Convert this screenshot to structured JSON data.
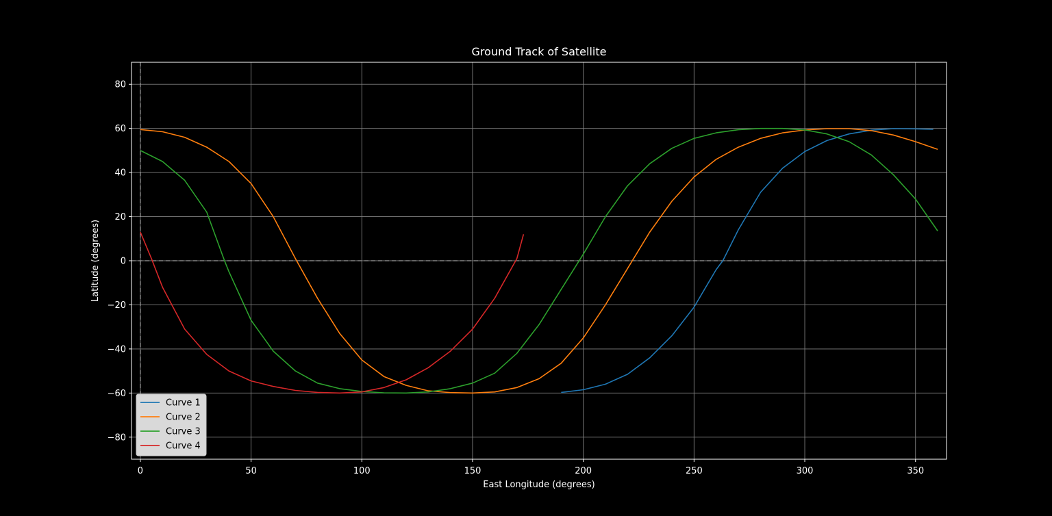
{
  "chart_data": {
    "type": "line",
    "title": "Ground Track of Satellite",
    "xlabel": "East Longitude (degrees)",
    "ylabel": "Latitude (degrees)",
    "xlim": [
      -4,
      364
    ],
    "ylim": [
      -90,
      90
    ],
    "xticks": [
      0,
      50,
      100,
      150,
      200,
      250,
      300,
      350
    ],
    "yticks": [
      -80,
      -60,
      -40,
      -20,
      0,
      20,
      40,
      60,
      80
    ],
    "xtick_labels": [
      "0",
      "50",
      "100",
      "150",
      "200",
      "250",
      "300",
      "350"
    ],
    "ytick_labels": [
      "−80",
      "−60",
      "−40",
      "−20",
      "0",
      "20",
      "40",
      "60",
      "80"
    ],
    "grid": true,
    "reference_lines": {
      "x": 0,
      "y": 0,
      "style": "dashed"
    },
    "legend_position": "lower-left",
    "series": [
      {
        "name": "Curve 1",
        "color": "#1f77b4",
        "points": [
          [
            190,
            -59.7
          ],
          [
            200,
            -58.5
          ],
          [
            210,
            -56
          ],
          [
            220,
            -51.5
          ],
          [
            230,
            -44
          ],
          [
            240,
            -34
          ],
          [
            250,
            -21
          ],
          [
            255,
            -12.5
          ],
          [
            260,
            -4
          ],
          [
            263,
            0
          ],
          [
            270,
            14
          ],
          [
            280,
            31
          ],
          [
            290,
            42
          ],
          [
            300,
            49.5
          ],
          [
            310,
            54.5
          ],
          [
            320,
            57.5
          ],
          [
            330,
            59.2
          ],
          [
            340,
            59.9
          ],
          [
            350,
            59.8
          ],
          [
            358,
            59.6
          ]
        ]
      },
      {
        "name": "Curve 2",
        "color": "#ff7f0e",
        "points": [
          [
            0,
            59.5
          ],
          [
            10,
            58.5
          ],
          [
            20,
            56
          ],
          [
            30,
            51.5
          ],
          [
            40,
            45
          ],
          [
            50,
            35
          ],
          [
            60,
            20
          ],
          [
            70,
            1
          ],
          [
            80,
            -17
          ],
          [
            90,
            -33
          ],
          [
            100,
            -45
          ],
          [
            110,
            -52.5
          ],
          [
            120,
            -56.5
          ],
          [
            130,
            -59
          ],
          [
            140,
            -59.8
          ],
          [
            150,
            -60
          ],
          [
            160,
            -59.5
          ],
          [
            170,
            -57.5
          ],
          [
            180,
            -53.5
          ],
          [
            190,
            -46.5
          ],
          [
            200,
            -35
          ],
          [
            210,
            -20
          ],
          [
            220,
            -3.5
          ],
          [
            230,
            13
          ],
          [
            240,
            27
          ],
          [
            250,
            38
          ],
          [
            260,
            46
          ],
          [
            270,
            51.5
          ],
          [
            280,
            55.5
          ],
          [
            290,
            58
          ],
          [
            300,
            59.3
          ],
          [
            310,
            59.9
          ],
          [
            320,
            59.9
          ],
          [
            330,
            59
          ],
          [
            340,
            57
          ],
          [
            350,
            54
          ],
          [
            360,
            50.5
          ]
        ]
      },
      {
        "name": "Curve 3",
        "color": "#2ca02c",
        "points": [
          [
            0,
            50
          ],
          [
            10,
            45
          ],
          [
            20,
            36.5
          ],
          [
            30,
            22
          ],
          [
            38,
            0
          ],
          [
            40,
            -5
          ],
          [
            50,
            -27
          ],
          [
            60,
            -41
          ],
          [
            70,
            -50
          ],
          [
            80,
            -55.5
          ],
          [
            90,
            -58
          ],
          [
            100,
            -59.3
          ],
          [
            110,
            -59.9
          ],
          [
            120,
            -60
          ],
          [
            130,
            -59.5
          ],
          [
            140,
            -58
          ],
          [
            150,
            -55.5
          ],
          [
            160,
            -51
          ],
          [
            170,
            -42
          ],
          [
            180,
            -29
          ],
          [
            190,
            -13
          ],
          [
            200,
            3
          ],
          [
            210,
            20
          ],
          [
            220,
            34
          ],
          [
            230,
            44
          ],
          [
            240,
            51
          ],
          [
            250,
            55.5
          ],
          [
            260,
            58
          ],
          [
            270,
            59.4
          ],
          [
            280,
            60
          ],
          [
            290,
            60
          ],
          [
            300,
            59.3
          ],
          [
            310,
            57.5
          ],
          [
            320,
            54
          ],
          [
            330,
            48
          ],
          [
            340,
            39
          ],
          [
            350,
            28
          ],
          [
            360,
            13.5
          ]
        ]
      },
      {
        "name": "Curve 4",
        "color": "#d62728",
        "points": [
          [
            0,
            13
          ],
          [
            5,
            1
          ],
          [
            10,
            -12
          ],
          [
            20,
            -31
          ],
          [
            30,
            -42.5
          ],
          [
            40,
            -50
          ],
          [
            50,
            -54.5
          ],
          [
            60,
            -57
          ],
          [
            70,
            -58.8
          ],
          [
            80,
            -59.7
          ],
          [
            90,
            -60
          ],
          [
            100,
            -59.5
          ],
          [
            110,
            -57.5
          ],
          [
            120,
            -54
          ],
          [
            130,
            -48.5
          ],
          [
            140,
            -41
          ],
          [
            150,
            -31
          ],
          [
            160,
            -17
          ],
          [
            170,
            1
          ],
          [
            173,
            12
          ]
        ]
      }
    ]
  }
}
